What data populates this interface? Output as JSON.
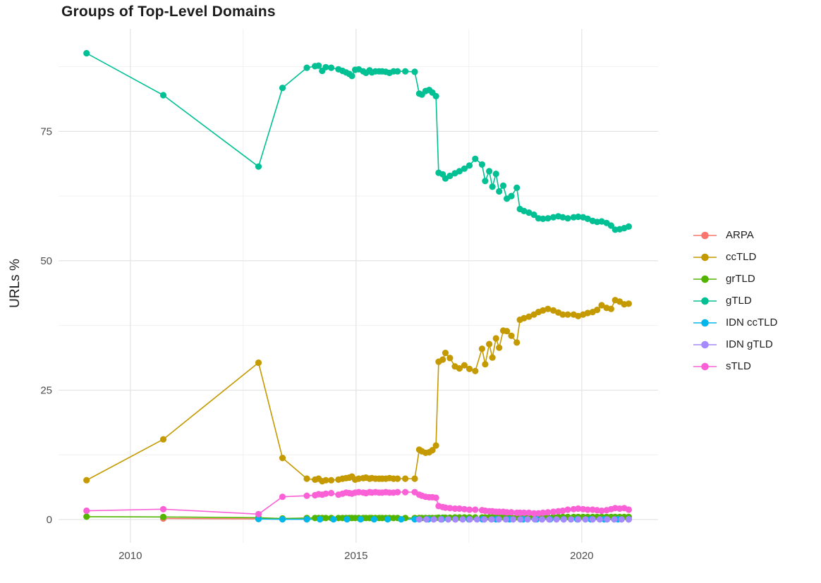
{
  "title": "Groups of Top-Level Domains",
  "chart_data": {
    "type": "line",
    "title": "Groups of Top-Level Domains",
    "xlabel": "",
    "ylabel": "URLs %",
    "x_ticks": [
      2010,
      2015,
      2020
    ],
    "x_minor_ticks": [
      2012.5,
      2017.5
    ],
    "y_ticks": [
      0,
      25,
      50,
      75
    ],
    "y_minor_ticks": [
      12.5,
      37.5,
      62.5,
      87.5
    ],
    "xlim": [
      2008.41,
      2021.69
    ],
    "ylim": [
      -4.5,
      94.8
    ],
    "grid": "major+minor",
    "legend_position": "right",
    "tick_label_color": "#4d4d4d",
    "grid_major_color": "#e3e3e3",
    "grid_minor_color": "#eeeeee",
    "series": [
      {
        "name": "ARPA",
        "color": "#F8766D",
        "x": [
          2010.73,
          2012.84,
          2013.37,
          2013.91
        ],
        "y": [
          0.2,
          0.12,
          0.08,
          0.05
        ]
      },
      {
        "name": "ccTLD",
        "color": "#C49A00",
        "x": [
          2009.03,
          2010.73,
          2012.84,
          2013.37,
          2013.91,
          2014.09,
          2014.17,
          2014.25,
          2014.33,
          2014.45,
          2014.61,
          2014.7,
          2014.78,
          2014.85,
          2014.91,
          2014.98,
          2015.06,
          2015.16,
          2015.22,
          2015.3,
          2015.35,
          2015.43,
          2015.51,
          2015.58,
          2015.66,
          2015.74,
          2015.83,
          2015.92,
          2016.09,
          2016.3,
          2016.4,
          2016.46,
          2016.54,
          2016.62,
          2016.69,
          2016.77,
          2016.83,
          2016.92,
          2016.98,
          2017.08,
          2017.19,
          2017.29,
          2017.4,
          2017.51,
          2017.64,
          2017.79,
          2017.86,
          2017.95,
          2018.02,
          2018.1,
          2018.17,
          2018.26,
          2018.34,
          2018.44,
          2018.56,
          2018.63,
          2018.72,
          2018.83,
          2018.94,
          2019.04,
          2019.14,
          2019.25,
          2019.37,
          2019.48,
          2019.58,
          2019.69,
          2019.82,
          2019.92,
          2020.03,
          2020.13,
          2020.24,
          2020.34,
          2020.44,
          2020.55,
          2020.65,
          2020.74,
          2020.84,
          2020.94,
          2021.04
        ],
        "y": [
          7.6,
          15.5,
          30.3,
          11.9,
          7.9,
          7.7,
          7.9,
          7.4,
          7.6,
          7.6,
          7.7,
          7.9,
          8.0,
          8.1,
          8.3,
          7.7,
          7.9,
          8.0,
          8.1,
          7.9,
          8.0,
          7.9,
          7.9,
          7.9,
          7.9,
          8.0,
          7.9,
          7.9,
          7.9,
          7.9,
          13.5,
          13.2,
          12.9,
          13.0,
          13.4,
          14.3,
          30.5,
          30.9,
          32.2,
          31.2,
          29.6,
          29.2,
          29.8,
          29.1,
          28.7,
          33.0,
          30.0,
          33.9,
          31.3,
          35.0,
          33.2,
          36.5,
          36.4,
          35.5,
          34.2,
          38.6,
          38.9,
          39.2,
          39.6,
          40.1,
          40.4,
          40.7,
          40.4,
          40.0,
          39.6,
          39.6,
          39.6,
          39.3,
          39.6,
          39.9,
          40.1,
          40.5,
          41.4,
          40.9,
          40.7,
          42.4,
          42.1,
          41.6,
          41.7
        ]
      },
      {
        "name": "grTLD",
        "color": "#53B400",
        "x": [
          2009.03,
          2010.73,
          2012.84,
          2013.37,
          2013.91,
          2014.09,
          2014.17,
          2014.25,
          2014.33,
          2014.45,
          2014.61,
          2014.7,
          2014.78,
          2014.85,
          2014.91,
          2014.98,
          2015.06,
          2015.16,
          2015.22,
          2015.3,
          2015.35,
          2015.43,
          2015.51,
          2015.58,
          2015.66,
          2015.74,
          2015.83,
          2015.92,
          2016.09,
          2016.3,
          2016.4,
          2016.46,
          2016.54,
          2016.62,
          2016.69,
          2016.77,
          2016.83,
          2016.92,
          2016.98,
          2017.08,
          2017.19,
          2017.29,
          2017.4,
          2017.51,
          2017.64,
          2017.79,
          2017.86,
          2017.95,
          2018.02,
          2018.1,
          2018.17,
          2018.26,
          2018.34,
          2018.44,
          2018.56,
          2018.63,
          2018.72,
          2018.83,
          2018.94,
          2019.04,
          2019.14,
          2019.25,
          2019.37,
          2019.48,
          2019.58,
          2019.69,
          2019.82,
          2019.92,
          2020.03,
          2020.13,
          2020.24,
          2020.34,
          2020.44,
          2020.55,
          2020.65,
          2020.74,
          2020.84,
          2020.94,
          2021.04
        ],
        "y": [
          0.55,
          0.5,
          0.35,
          0.2,
          0.3,
          0.3,
          0.3,
          0.3,
          0.3,
          0.3,
          0.3,
          0.3,
          0.3,
          0.3,
          0.3,
          0.3,
          0.3,
          0.3,
          0.3,
          0.3,
          0.3,
          0.3,
          0.3,
          0.3,
          0.3,
          0.3,
          0.3,
          0.3,
          0.3,
          0.3,
          0.3,
          0.3,
          0.3,
          0.3,
          0.3,
          0.3,
          0.35,
          0.35,
          0.35,
          0.35,
          0.4,
          0.4,
          0.4,
          0.4,
          0.4,
          0.4,
          0.4,
          0.4,
          0.4,
          0.45,
          0.45,
          0.45,
          0.45,
          0.45,
          0.45,
          0.45,
          0.45,
          0.45,
          0.45,
          0.45,
          0.45,
          0.45,
          0.5,
          0.5,
          0.5,
          0.5,
          0.5,
          0.5,
          0.5,
          0.5,
          0.5,
          0.5,
          0.5,
          0.5,
          0.5,
          0.5,
          0.5,
          0.5,
          0.5
        ]
      },
      {
        "name": "gTLD",
        "color": "#00C094",
        "x": [
          2009.03,
          2010.73,
          2012.84,
          2013.37,
          2013.91,
          2014.09,
          2014.17,
          2014.25,
          2014.33,
          2014.45,
          2014.61,
          2014.7,
          2014.78,
          2014.85,
          2014.91,
          2014.98,
          2015.06,
          2015.16,
          2015.22,
          2015.3,
          2015.35,
          2015.43,
          2015.51,
          2015.58,
          2015.66,
          2015.74,
          2015.83,
          2015.92,
          2016.09,
          2016.3,
          2016.4,
          2016.46,
          2016.54,
          2016.62,
          2016.69,
          2016.77,
          2016.83,
          2016.92,
          2016.98,
          2017.08,
          2017.19,
          2017.29,
          2017.4,
          2017.51,
          2017.64,
          2017.79,
          2017.86,
          2017.95,
          2018.02,
          2018.1,
          2018.17,
          2018.26,
          2018.34,
          2018.44,
          2018.56,
          2018.63,
          2018.72,
          2018.83,
          2018.94,
          2019.04,
          2019.14,
          2019.25,
          2019.37,
          2019.48,
          2019.58,
          2019.69,
          2019.82,
          2019.92,
          2020.03,
          2020.13,
          2020.24,
          2020.34,
          2020.44,
          2020.55,
          2020.65,
          2020.74,
          2020.84,
          2020.94,
          2021.04
        ],
        "y": [
          90.1,
          82.0,
          68.2,
          83.4,
          87.3,
          87.6,
          87.7,
          86.7,
          87.4,
          87.3,
          87.0,
          86.7,
          86.4,
          86.1,
          85.7,
          86.9,
          87.0,
          86.6,
          86.3,
          86.8,
          86.4,
          86.6,
          86.6,
          86.6,
          86.5,
          86.3,
          86.6,
          86.6,
          86.6,
          86.5,
          82.3,
          82.1,
          82.8,
          83.0,
          82.5,
          81.8,
          67.0,
          66.7,
          65.9,
          66.4,
          66.9,
          67.3,
          67.8,
          68.4,
          69.7,
          68.6,
          65.4,
          67.3,
          64.3,
          66.8,
          63.4,
          64.5,
          62.0,
          62.5,
          64.1,
          60.0,
          59.6,
          59.3,
          58.9,
          58.2,
          58.1,
          58.2,
          58.4,
          58.6,
          58.4,
          58.2,
          58.4,
          58.5,
          58.4,
          58.1,
          57.7,
          57.5,
          57.6,
          57.3,
          56.8,
          56.0,
          56.1,
          56.3,
          56.6
        ]
      },
      {
        "name": "IDN ccTLD",
        "color": "#00B6EB",
        "x": [
          2012.84,
          2013.37,
          2013.91,
          2014.2,
          2014.5,
          2014.8,
          2015.1,
          2015.4,
          2015.7,
          2016.0,
          2016.3,
          2016.6,
          2016.9,
          2017.2,
          2017.5,
          2017.8,
          2018.1,
          2018.4,
          2018.7,
          2019.0,
          2019.3,
          2019.6,
          2019.9,
          2020.2,
          2020.5,
          2020.8,
          2021.04
        ],
        "y": [
          0.1,
          0.05,
          0.05,
          0.05,
          0.05,
          0.05,
          0.05,
          0.05,
          0.05,
          0.05,
          0.05,
          0.05,
          0.05,
          0.05,
          0.05,
          0.05,
          0.05,
          0.05,
          0.05,
          0.05,
          0.05,
          0.05,
          0.05,
          0.05,
          0.05,
          0.05,
          0.05
        ]
      },
      {
        "name": "IDN gTLD",
        "color": "#A58AFF",
        "x": [
          2016.4,
          2016.56,
          2016.72,
          2016.88,
          2017.04,
          2017.2,
          2017.36,
          2017.52,
          2017.68,
          2017.84,
          2018.0,
          2018.16,
          2018.32,
          2018.48,
          2018.64,
          2018.8,
          2018.96,
          2019.12,
          2019.28,
          2019.44,
          2019.6,
          2019.76,
          2019.92,
          2020.08,
          2020.24,
          2020.4,
          2020.56,
          2020.72,
          2020.88,
          2021.04
        ],
        "y": [
          0.02,
          0.02,
          0.02,
          0.02,
          0.02,
          0.02,
          0.02,
          0.02,
          0.02,
          0.02,
          0.02,
          0.02,
          0.02,
          0.02,
          0.02,
          0.02,
          0.02,
          0.02,
          0.02,
          0.02,
          0.02,
          0.02,
          0.02,
          0.02,
          0.02,
          0.02,
          0.02,
          0.02,
          0.02,
          0.02
        ]
      },
      {
        "name": "sTLD",
        "color": "#FB61D7",
        "x": [
          2009.03,
          2010.73,
          2012.84,
          2013.37,
          2013.91,
          2014.09,
          2014.17,
          2014.25,
          2014.33,
          2014.45,
          2014.61,
          2014.7,
          2014.78,
          2014.85,
          2014.91,
          2014.98,
          2015.06,
          2015.16,
          2015.22,
          2015.3,
          2015.35,
          2015.43,
          2015.51,
          2015.58,
          2015.66,
          2015.74,
          2015.83,
          2015.92,
          2016.09,
          2016.3,
          2016.4,
          2016.46,
          2016.54,
          2016.62,
          2016.69,
          2016.77,
          2016.83,
          2016.92,
          2016.98,
          2017.08,
          2017.19,
          2017.29,
          2017.4,
          2017.51,
          2017.64,
          2017.79,
          2017.86,
          2017.95,
          2018.02,
          2018.1,
          2018.17,
          2018.26,
          2018.34,
          2018.44,
          2018.56,
          2018.63,
          2018.72,
          2018.83,
          2018.94,
          2019.04,
          2019.14,
          2019.25,
          2019.37,
          2019.48,
          2019.58,
          2019.69,
          2019.82,
          2019.92,
          2020.03,
          2020.13,
          2020.24,
          2020.34,
          2020.44,
          2020.55,
          2020.65,
          2020.74,
          2020.84,
          2020.94,
          2021.04
        ],
        "y": [
          1.7,
          2.0,
          1.05,
          4.4,
          4.6,
          4.7,
          4.9,
          4.8,
          5.0,
          5.1,
          4.8,
          5.0,
          5.2,
          5.1,
          5.0,
          5.2,
          5.3,
          5.2,
          5.1,
          5.3,
          5.2,
          5.3,
          5.2,
          5.2,
          5.3,
          5.2,
          5.2,
          5.3,
          5.3,
          5.3,
          4.8,
          4.6,
          4.4,
          4.3,
          4.3,
          4.2,
          2.6,
          2.4,
          2.3,
          2.2,
          2.1,
          2.1,
          2.0,
          1.9,
          1.9,
          1.8,
          1.7,
          1.6,
          1.6,
          1.5,
          1.5,
          1.5,
          1.4,
          1.4,
          1.3,
          1.3,
          1.3,
          1.3,
          1.2,
          1.2,
          1.3,
          1.4,
          1.5,
          1.6,
          1.7,
          1.9,
          2.0,
          2.1,
          2.0,
          1.9,
          1.9,
          1.8,
          1.7,
          1.8,
          2.0,
          2.2,
          2.1,
          2.2,
          1.9
        ]
      }
    ]
  }
}
